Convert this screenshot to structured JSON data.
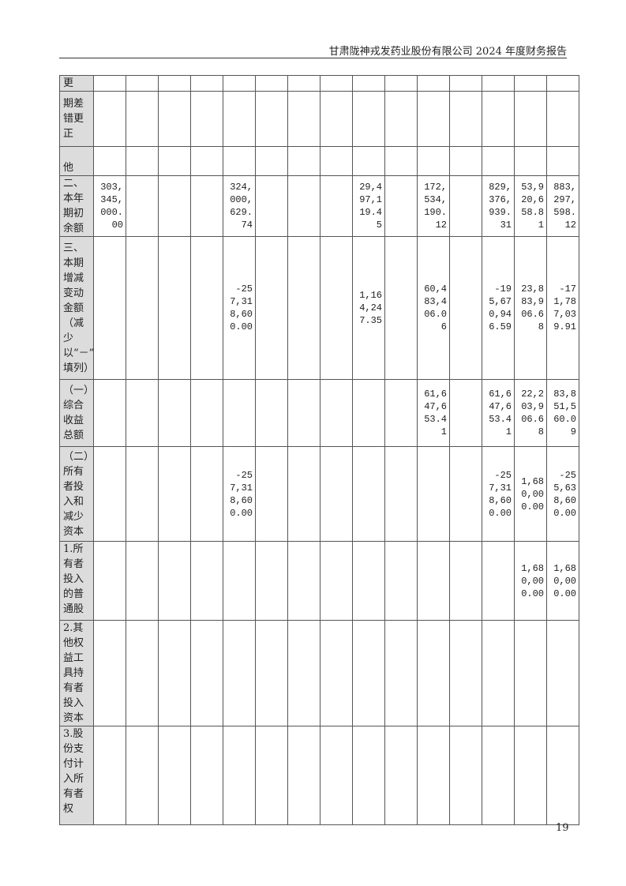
{
  "header": {
    "title": "甘肃陇神戎发药业股份有限公司 2024 年度财务报告"
  },
  "table": {
    "rows": [
      {
        "label": "更",
        "cells": [
          "",
          "",
          "",
          "",
          "",
          "",
          "",
          "",
          "",
          "",
          "",
          "",
          "",
          "",
          ""
        ]
      },
      {
        "label": "期差错更正",
        "cells": [
          "",
          "",
          "",
          "",
          "",
          "",
          "",
          "",
          "",
          "",
          "",
          "",
          "",
          "",
          ""
        ]
      },
      {
        "label": "他",
        "cells": [
          "",
          "",
          "",
          "",
          "",
          "",
          "",
          "",
          "",
          "",
          "",
          "",
          "",
          "",
          ""
        ]
      },
      {
        "label": "二、本年期初余额",
        "cells": [
          "303,345,000.00",
          "",
          "",
          "",
          "324,000,629.74",
          "",
          "",
          "",
          "29,497,119.45",
          "",
          "172,534,190.12",
          "",
          "829,376,939.31",
          "53,920,658.81",
          "883,297,598.12"
        ]
      },
      {
        "label": "三、本期增减变动金额（减少以“－”号填列）",
        "cells": [
          "",
          "",
          "",
          "",
          "-257,318,600.00",
          "",
          "",
          "",
          "1,164,247.35",
          "",
          "60,483,406.06",
          "",
          "-195,670,946.59",
          "23,883,906.68",
          "-171,787,039.91"
        ]
      },
      {
        "label": "（一）综合收益总额",
        "cells": [
          "",
          "",
          "",
          "",
          "",
          "",
          "",
          "",
          "",
          "",
          "61,647,653.41",
          "",
          "61,647,653.41",
          "22,203,906.68",
          "83,851,560.09"
        ]
      },
      {
        "label": "（二）所有者投入和减少资本",
        "cells": [
          "",
          "",
          "",
          "",
          "-257,318,600.00",
          "",
          "",
          "",
          "",
          "",
          "",
          "",
          "-257,318,600.00",
          "1,680,000.00",
          "-255,638,600.00"
        ]
      },
      {
        "label": "1.所有者投入的普通股",
        "cells": [
          "",
          "",
          "",
          "",
          "",
          "",
          "",
          "",
          "",
          "",
          "",
          "",
          "",
          "1,680,000.00",
          "1,680,000.00"
        ]
      },
      {
        "label": "2.其他权益工具持有者投入资本",
        "cells": [
          "",
          "",
          "",
          "",
          "",
          "",
          "",
          "",
          "",
          "",
          "",
          "",
          "",
          "",
          ""
        ]
      },
      {
        "label": "3.股份支付计入所有者权",
        "cells": [
          "",
          "",
          "",
          "",
          "",
          "",
          "",
          "",
          "",
          "",
          "",
          "",
          "",
          "",
          ""
        ]
      }
    ]
  },
  "footer": {
    "page_number": "19"
  }
}
